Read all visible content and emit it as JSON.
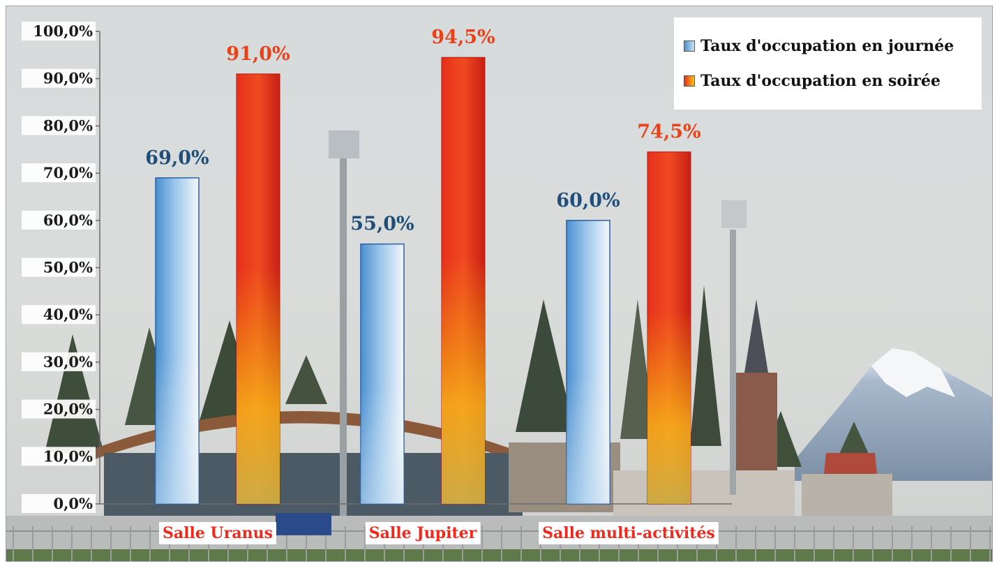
{
  "chart_data": {
    "type": "bar",
    "categories": [
      "Salle Uranus",
      "Salle Jupiter",
      "Salle multi-activités"
    ],
    "series": [
      {
        "name": "Taux d'occupation en journée",
        "values": [
          69.0,
          55.0,
          60.0
        ],
        "labels": [
          "69,0%",
          "55,0%",
          "60,0%"
        ],
        "color": "#5aa0d8"
      },
      {
        "name": "Taux d'occupation en soirée",
        "values": [
          91.0,
          94.5,
          74.5
        ],
        "labels": [
          "91,0%",
          "94,5%",
          "74,5%"
        ],
        "color": "#e8351c"
      }
    ],
    "ylim": [
      0,
      100
    ],
    "yticks": [
      0,
      10,
      20,
      30,
      40,
      50,
      60,
      70,
      80,
      90,
      100
    ],
    "ytick_labels": [
      "0,0%",
      "10,0%",
      "20,0%",
      "30,0%",
      "40,0%",
      "50,0%",
      "60,0%",
      "70,0%",
      "80,0%",
      "90,0%",
      "100,0%"
    ],
    "legend_position": "top-right",
    "grid": false,
    "background": "photo"
  }
}
